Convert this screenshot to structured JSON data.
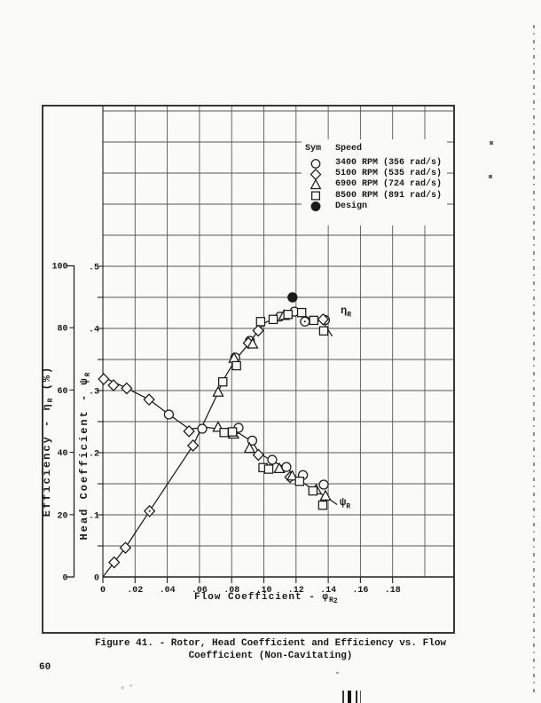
{
  "page": {
    "number": "60"
  },
  "caption": {
    "line1": "Figure 41. - Rotor, Head Coefficient and Efficiency vs. Flow",
    "line2": "Coefficient (Non-Cavitating)"
  },
  "legend": {
    "header_sym": "Sym",
    "header_speed": "Speed",
    "rows": [
      {
        "symbol": "circle",
        "label": "3400 RPM (356 rad/s)"
      },
      {
        "symbol": "diamond",
        "label": "5100 RPM (535 rad/s)"
      },
      {
        "symbol": "triangle",
        "label": "6900 RPM (724 rad/s)"
      },
      {
        "symbol": "square",
        "label": "8500 RPM (891 rad/s)"
      },
      {
        "symbol": "filled-circle",
        "label": "Design"
      }
    ]
  },
  "axis_titles": {
    "efficiency": {
      "pre": "Efficiency - η",
      "sub": "R",
      "post": " (%)"
    },
    "head": {
      "pre": "Head Coefficient - ψ",
      "sub": "R",
      "post": ""
    },
    "flow": {
      "pre": "Flow Coefficient - φ",
      "sub": "R",
      "subsub": "2"
    }
  },
  "curve_labels": {
    "eta": {
      "main": "η",
      "sub": "R"
    },
    "psi": {
      "main": "ψ",
      "sub": "R"
    }
  },
  "colors": {
    "ink": "#1a1a1a",
    "paper": "#fafaf7",
    "grid": "#565650",
    "frame": "#222220"
  },
  "chart_data": {
    "type": "scatter",
    "title": "Rotor, Head Coefficient and Efficiency vs. Flow Coefficient (Non-Cavitating)",
    "x_axis": {
      "label": "Flow Coefficient - φR2",
      "tick_labels": [
        "0",
        ".02",
        ".04",
        ".06",
        ".08",
        ".10",
        ".12",
        ".14",
        ".16",
        ".18"
      ],
      "tick_values": [
        0,
        0.02,
        0.04,
        0.06,
        0.08,
        0.1,
        0.12,
        0.14,
        0.16,
        0.18
      ],
      "grid_step": 0.02,
      "range": [
        0,
        0.218
      ]
    },
    "y_axis_head": {
      "label": "Head Coefficient - ψR",
      "tick_labels": [
        "0",
        ".1",
        ".2",
        ".3",
        ".4",
        ".5"
      ],
      "tick_values": [
        0,
        0.1,
        0.2,
        0.3,
        0.4,
        0.5
      ],
      "grid_step": 0.05,
      "range": [
        0,
        0.5
      ]
    },
    "y_axis_efficiency": {
      "label": "Efficiency - ηR (%)",
      "tick_labels": [
        "0",
        "20",
        "40",
        "60",
        "80",
        "100"
      ],
      "tick_values": [
        0,
        20,
        40,
        60,
        80,
        100
      ],
      "range": [
        0,
        100
      ]
    },
    "efficiency_scale_note": "η_R points/curve are read on the 0-100% efficiency scale; plotted ordinate equals ψ-axis value × 200 in percent.",
    "series": [
      {
        "name": "3400 RPM (356 rad/s)",
        "symbol": "circle",
        "eta_points": [
          [
            0.0822,
            0.353
          ],
          [
            0.0913,
            0.38
          ],
          [
            0.11,
            0.419
          ],
          [
            0.119,
            0.427
          ],
          [
            0.1255,
            0.411,
            1
          ],
          [
            0.138,
            0.4135
          ]
        ],
        "psi_points": [
          [
            0.041,
            0.2615
          ],
          [
            0.0617,
            0.2385
          ],
          [
            0.0843,
            0.24
          ],
          [
            0.0928,
            0.2195
          ],
          [
            0.1052,
            0.1885
          ],
          [
            0.114,
            0.177
          ],
          [
            0.1243,
            0.164
          ],
          [
            0.1372,
            0.1485
          ]
        ]
      },
      {
        "name": "5100 RPM (535 rad/s)",
        "symbol": "diamond",
        "eta_points": [
          [
            0.007,
            0.0235
          ],
          [
            0.014,
            0.047
          ],
          [
            0.029,
            0.106,
            1
          ],
          [
            0.056,
            0.2115
          ],
          [
            0.0905,
            0.3765
          ],
          [
            0.0965,
            0.3965
          ],
          [
            0.1368,
            0.4145
          ]
        ],
        "psi_points": [
          [
            0.0005,
            0.3185
          ],
          [
            0.0066,
            0.3085
          ],
          [
            0.0148,
            0.3035
          ],
          [
            0.0287,
            0.2855
          ],
          [
            0.0535,
            0.2345
          ],
          [
            0.0966,
            0.1965
          ],
          [
            0.1163,
            0.1605
          ]
        ]
      },
      {
        "name": "6900 RPM (724 rad/s)",
        "symbol": "triangle",
        "eta_points": [
          [
            0.0716,
            0.297
          ],
          [
            0.0815,
            0.3515
          ],
          [
            0.093,
            0.3745
          ],
          [
            0.1125,
            0.4205
          ]
        ],
        "psi_points": [
          [
            0.0716,
            0.2405
          ],
          [
            0.0812,
            0.2295
          ],
          [
            0.0911,
            0.2065
          ],
          [
            0.1096,
            0.174
          ],
          [
            0.1176,
            0.162
          ],
          [
            0.1325,
            0.14
          ],
          [
            0.1383,
            0.13
          ]
        ]
      },
      {
        "name": "8500 RPM (891 rad/s)",
        "symbol": "square",
        "eta_points": [
          [
            0.0745,
            0.314
          ],
          [
            0.083,
            0.34
          ],
          [
            0.098,
            0.411
          ],
          [
            0.1058,
            0.4145
          ],
          [
            0.115,
            0.4225
          ],
          [
            0.1235,
            0.4255
          ],
          [
            0.131,
            0.413
          ],
          [
            0.1372,
            0.396
          ]
        ],
        "psi_points": [
          [
            0.0753,
            0.2325
          ],
          [
            0.0805,
            0.2335
          ],
          [
            0.0995,
            0.176
          ],
          [
            0.103,
            0.1735
          ],
          [
            0.1222,
            0.154
          ],
          [
            0.1305,
            0.1385
          ],
          [
            0.1366,
            0.1155
          ]
        ]
      },
      {
        "name": "Design",
        "symbol": "filled-circle",
        "eta_points": [
          [
            0.1178,
            0.45
          ]
        ],
        "psi_points": []
      }
    ],
    "curve_paths": {
      "eta": [
        [
          0,
          0
        ],
        [
          0.007,
          0.0235
        ],
        [
          0.014,
          0.047
        ],
        [
          0.029,
          0.106
        ],
        [
          0.056,
          0.2115
        ],
        [
          0.0716,
          0.297
        ],
        [
          0.0745,
          0.3155
        ],
        [
          0.0822,
          0.349
        ],
        [
          0.0913,
          0.3775
        ],
        [
          0.0965,
          0.3965
        ],
        [
          0.101,
          0.4095
        ],
        [
          0.1058,
          0.4155
        ],
        [
          0.115,
          0.4235
        ],
        [
          0.1195,
          0.4265
        ],
        [
          0.1235,
          0.4245
        ],
        [
          0.128,
          0.4165
        ],
        [
          0.1335,
          0.4135
        ],
        [
          0.1375,
          0.4075
        ],
        [
          0.1425,
          0.3875
        ]
      ],
      "psi": [
        [
          0,
          0.322
        ],
        [
          0.015,
          0.3035
        ],
        [
          0.0287,
          0.2855
        ],
        [
          0.041,
          0.2615
        ],
        [
          0.0535,
          0.2385
        ],
        [
          0.065,
          0.2405
        ],
        [
          0.075,
          0.2375
        ],
        [
          0.085,
          0.2305
        ],
        [
          0.093,
          0.2175
        ],
        [
          0.097,
          0.1995
        ],
        [
          0.1052,
          0.1865
        ],
        [
          0.114,
          0.1755
        ],
        [
          0.118,
          0.166
        ],
        [
          0.1225,
          0.1555
        ],
        [
          0.1305,
          0.1405
        ],
        [
          0.1375,
          0.131
        ],
        [
          0.1455,
          0.1165
        ]
      ]
    }
  }
}
